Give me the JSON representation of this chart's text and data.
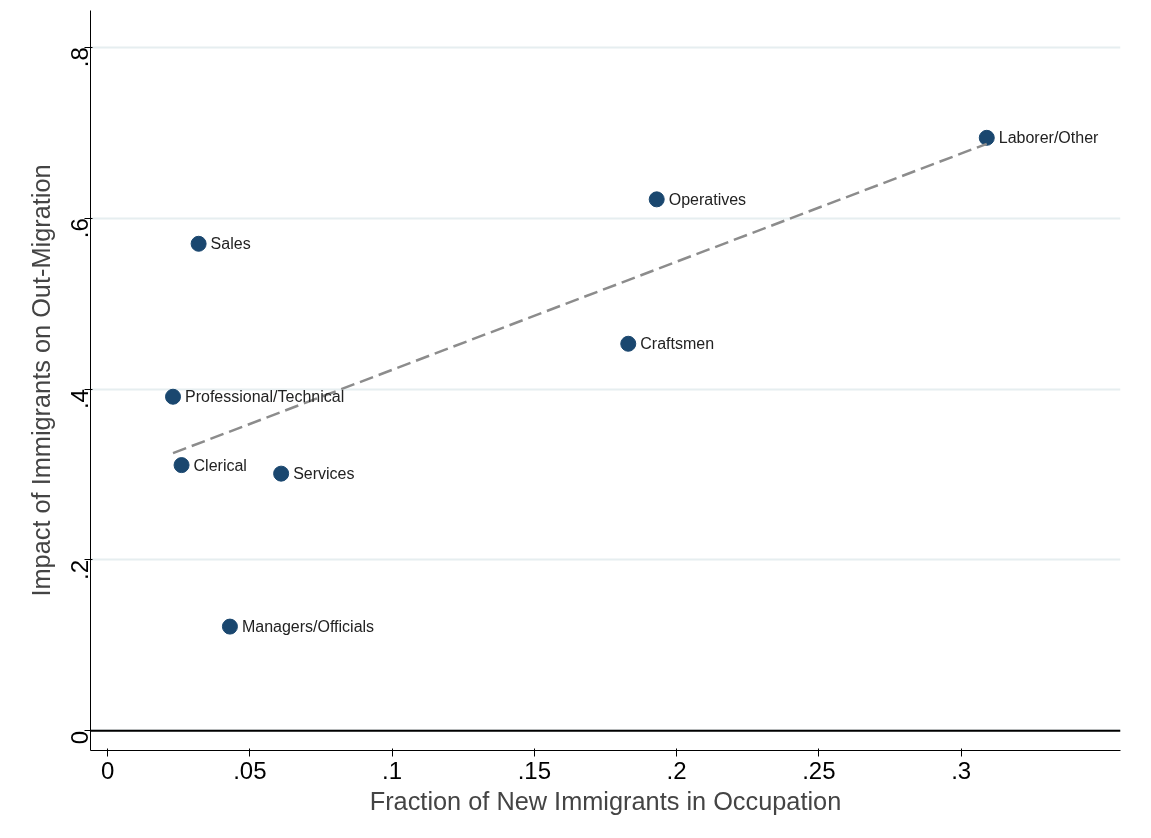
{
  "chart_data": {
    "type": "scatter",
    "xlabel": "Fraction of New Immigrants in Occupation",
    "ylabel": "Impact of Immigrants on Out-Migration",
    "series": [
      {
        "color": "#1a476f",
        "marker": "circle",
        "x": [
          0.309,
          0.193,
          0.032,
          0.183,
          0.023,
          0.026,
          0.061,
          0.043
        ],
        "values": [
          0.694,
          0.622,
          0.57,
          0.453,
          0.391,
          0.311,
          0.301,
          0.122
        ]
      },
      {
        "type": "line",
        "color": "#8c8c8c",
        "line_style": "dashed",
        "x": [
          0.023,
          0.309
        ],
        "values": [
          0.325,
          0.687
        ]
      }
    ],
    "annotations": [
      {
        "text": "Laborer/Other",
        "x": 0.309,
        "y": 0.694
      },
      {
        "text": "Operatives",
        "x": 0.193,
        "y": 0.622
      },
      {
        "text": "Sales",
        "x": 0.032,
        "y": 0.57
      },
      {
        "text": "Craftsmen",
        "x": 0.183,
        "y": 0.453
      },
      {
        "text": "Professional/Technical",
        "x": 0.023,
        "y": 0.391
      },
      {
        "text": "Clerical",
        "x": 0.026,
        "y": 0.311
      },
      {
        "text": "Services",
        "x": 0.061,
        "y": 0.301
      },
      {
        "text": "Managers/Officials",
        "x": 0.043,
        "y": 0.122
      }
    ],
    "xlim": [
      -0.006,
      0.356
    ],
    "ylim": [
      -0.023,
      0.843
    ],
    "xticks": [
      {
        "value": 0,
        "label": "0"
      },
      {
        "value": 0.05,
        "label": ".05"
      },
      {
        "value": 0.1,
        "label": ".1"
      },
      {
        "value": 0.15,
        "label": ".15"
      },
      {
        "value": 0.2,
        "label": ".2"
      },
      {
        "value": 0.25,
        "label": ".25"
      },
      {
        "value": 0.3,
        "label": ".3"
      }
    ],
    "yticks": [
      {
        "value": 0,
        "label": "0"
      },
      {
        "value": 0.2,
        "label": ".2"
      },
      {
        "value": 0.4,
        "label": ".4"
      },
      {
        "value": 0.6,
        "label": ".6"
      },
      {
        "value": 0.8,
        "label": ".8"
      }
    ],
    "grid": "y",
    "ref_lines": [
      {
        "axis": "y",
        "value": 0,
        "color": "#000000"
      }
    ]
  }
}
